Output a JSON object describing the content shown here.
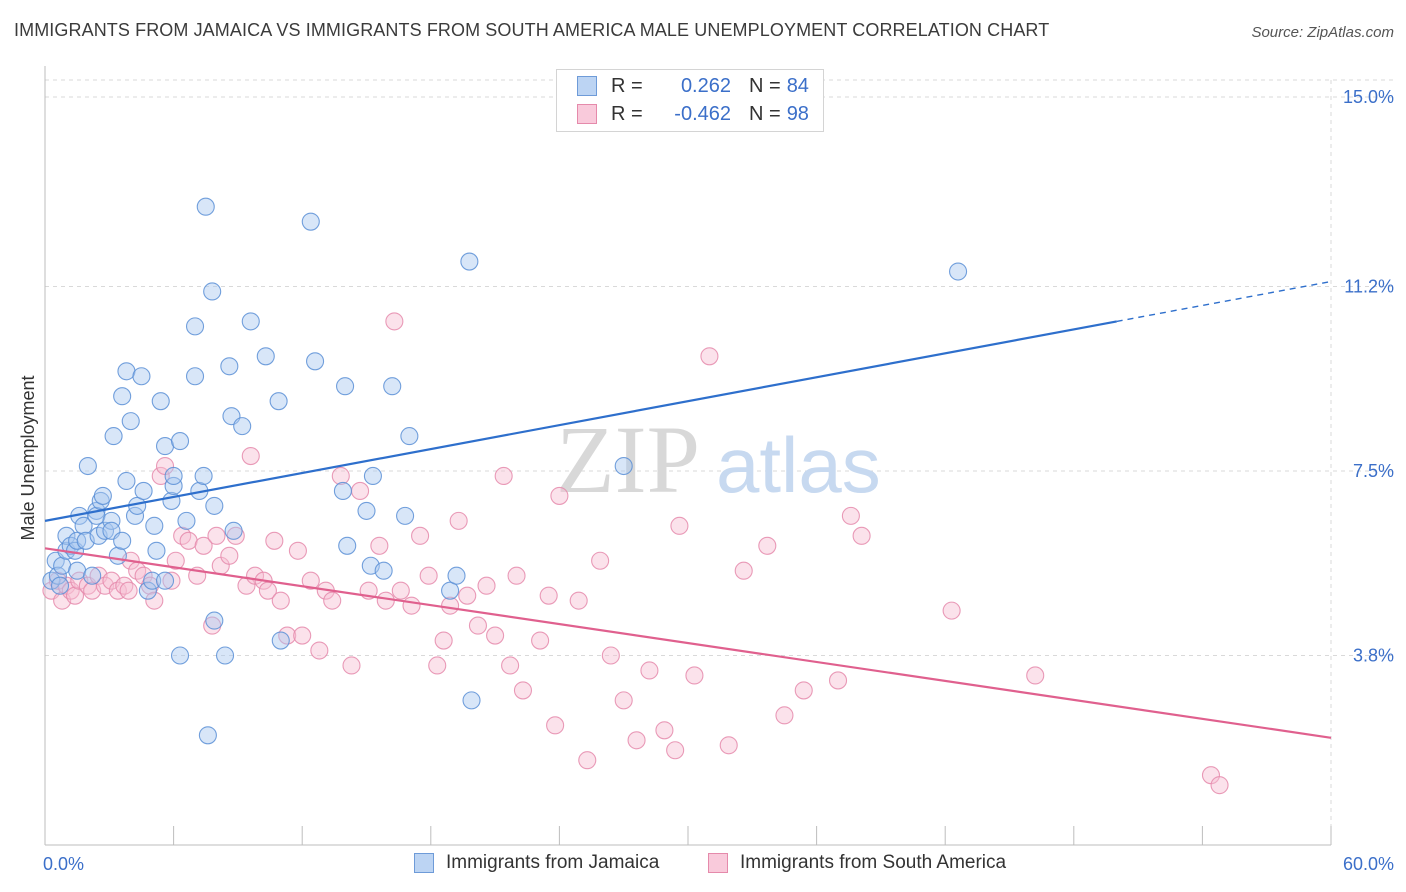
{
  "header": {
    "title": "IMMIGRANTS FROM JAMAICA VS IMMIGRANTS FROM SOUTH AMERICA MALE UNEMPLOYMENT CORRELATION CHART",
    "source": "Source: ZipAtlas.com"
  },
  "watermark": {
    "zip": "ZIP",
    "atlas": "atlas"
  },
  "colors": {
    "blue_fill": "#a9c8f0",
    "blue_stroke": "#5b8fd6",
    "blue_line": "#2e6fcc",
    "pink_fill": "#f6bfd2",
    "pink_stroke": "#e58aab",
    "pink_line": "#e0608e",
    "grid": "#d9d9d9",
    "axis_text": "#3b6fc9"
  },
  "legend_top": {
    "rows": [
      {
        "r_label": "R =",
        "r_value": "0.262",
        "n_label": "N =",
        "n_value": "84"
      },
      {
        "r_label": "R =",
        "r_value": "-0.462",
        "n_label": "N =",
        "n_value": "98"
      }
    ]
  },
  "legend_bottom": {
    "items": [
      "Immigrants from Jamaica",
      "Immigrants from South America"
    ]
  },
  "chart_data": {
    "type": "scatter",
    "title": "IMMIGRANTS FROM JAMAICA VS IMMIGRANTS FROM SOUTH AMERICA MALE UNEMPLOYMENT CORRELATION CHART",
    "xlabel": "",
    "ylabel": "Male Unemployment",
    "xlim": [
      0,
      60
    ],
    "ylim": [
      0,
      15.5
    ],
    "x_tick_labels": [
      "0.0%",
      "60.0%"
    ],
    "y_ticks": [
      3.8,
      7.5,
      11.2,
      15.0
    ],
    "y_tick_labels": [
      "3.8%",
      "7.5%",
      "11.2%",
      "15.0%"
    ],
    "grid": true,
    "legend_position": "top-center",
    "series": [
      {
        "name": "Immigrants from Jamaica",
        "R": 0.262,
        "N": 84,
        "trend": {
          "x": [
            0,
            50
          ],
          "y": [
            6.5,
            10.5
          ],
          "dashed_to_x": 60,
          "dashed_y_end": 11.3
        },
        "points": [
          [
            0.3,
            5.3
          ],
          [
            0.5,
            5.7
          ],
          [
            0.6,
            5.4
          ],
          [
            0.8,
            5.6
          ],
          [
            0.7,
            5.2
          ],
          [
            1.0,
            5.9
          ],
          [
            1.0,
            6.2
          ],
          [
            1.2,
            6.0
          ],
          [
            1.4,
            5.9
          ],
          [
            1.5,
            6.1
          ],
          [
            1.5,
            5.5
          ],
          [
            1.6,
            6.6
          ],
          [
            1.8,
            6.4
          ],
          [
            1.9,
            6.1
          ],
          [
            2.0,
            7.6
          ],
          [
            2.2,
            5.4
          ],
          [
            2.4,
            6.7
          ],
          [
            2.4,
            6.6
          ],
          [
            2.5,
            6.2
          ],
          [
            2.6,
            6.9
          ],
          [
            2.7,
            7.0
          ],
          [
            2.8,
            6.3
          ],
          [
            3.1,
            6.5
          ],
          [
            3.1,
            6.3
          ],
          [
            3.2,
            8.2
          ],
          [
            3.4,
            5.8
          ],
          [
            3.6,
            6.1
          ],
          [
            3.6,
            9.0
          ],
          [
            3.8,
            9.5
          ],
          [
            3.8,
            7.3
          ],
          [
            4.0,
            8.5
          ],
          [
            4.2,
            6.6
          ],
          [
            4.3,
            6.8
          ],
          [
            4.5,
            9.4
          ],
          [
            4.6,
            7.1
          ],
          [
            4.8,
            5.1
          ],
          [
            5.0,
            5.3
          ],
          [
            5.1,
            6.4
          ],
          [
            5.2,
            5.9
          ],
          [
            5.4,
            8.9
          ],
          [
            5.6,
            5.3
          ],
          [
            5.6,
            8.0
          ],
          [
            5.9,
            6.9
          ],
          [
            6.0,
            7.2
          ],
          [
            6.0,
            7.4
          ],
          [
            6.3,
            8.1
          ],
          [
            6.3,
            3.8
          ],
          [
            6.6,
            6.5
          ],
          [
            7.0,
            10.4
          ],
          [
            7.0,
            9.4
          ],
          [
            7.2,
            7.1
          ],
          [
            7.4,
            7.4
          ],
          [
            7.5,
            12.8
          ],
          [
            7.6,
            2.2
          ],
          [
            7.8,
            11.1
          ],
          [
            7.9,
            6.8
          ],
          [
            7.9,
            4.5
          ],
          [
            8.4,
            3.8
          ],
          [
            8.6,
            9.6
          ],
          [
            8.7,
            8.6
          ],
          [
            8.8,
            6.3
          ],
          [
            9.2,
            8.4
          ],
          [
            9.6,
            10.5
          ],
          [
            10.3,
            9.8
          ],
          [
            10.9,
            8.9
          ],
          [
            11.0,
            4.1
          ],
          [
            12.4,
            12.5
          ],
          [
            12.6,
            9.7
          ],
          [
            13.9,
            7.1
          ],
          [
            14.0,
            9.2
          ],
          [
            14.1,
            6.0
          ],
          [
            15.0,
            6.7
          ],
          [
            15.2,
            5.6
          ],
          [
            15.3,
            7.4
          ],
          [
            15.8,
            5.5
          ],
          [
            16.2,
            9.2
          ],
          [
            16.8,
            6.6
          ],
          [
            17.0,
            8.2
          ],
          [
            18.9,
            5.1
          ],
          [
            19.2,
            5.4
          ],
          [
            19.8,
            11.7
          ],
          [
            19.9,
            2.9
          ],
          [
            27.0,
            7.6
          ],
          [
            42.6,
            11.5
          ]
        ]
      },
      {
        "name": "Immigrants from South America",
        "R": -0.462,
        "N": 98,
        "trend": {
          "x": [
            0,
            60
          ],
          "y": [
            5.95,
            2.15
          ]
        },
        "points": [
          [
            0.3,
            5.1
          ],
          [
            0.6,
            5.3
          ],
          [
            0.8,
            4.9
          ],
          [
            1.0,
            5.2
          ],
          [
            1.2,
            5.1
          ],
          [
            1.4,
            5.0
          ],
          [
            1.6,
            5.3
          ],
          [
            2.0,
            5.2
          ],
          [
            2.2,
            5.1
          ],
          [
            2.5,
            5.4
          ],
          [
            2.8,
            5.2
          ],
          [
            3.1,
            5.3
          ],
          [
            3.4,
            5.1
          ],
          [
            3.7,
            5.2
          ],
          [
            3.9,
            5.1
          ],
          [
            4.0,
            5.7
          ],
          [
            4.3,
            5.5
          ],
          [
            4.6,
            5.4
          ],
          [
            4.9,
            5.2
          ],
          [
            5.1,
            4.9
          ],
          [
            5.4,
            7.4
          ],
          [
            5.6,
            7.6
          ],
          [
            5.9,
            5.3
          ],
          [
            6.1,
            5.7
          ],
          [
            6.4,
            6.2
          ],
          [
            6.7,
            6.1
          ],
          [
            7.1,
            5.4
          ],
          [
            7.4,
            6.0
          ],
          [
            7.8,
            4.4
          ],
          [
            8.0,
            6.2
          ],
          [
            8.2,
            5.6
          ],
          [
            8.6,
            5.8
          ],
          [
            8.9,
            6.2
          ],
          [
            9.4,
            5.2
          ],
          [
            9.6,
            7.8
          ],
          [
            9.8,
            5.4
          ],
          [
            10.2,
            5.3
          ],
          [
            10.4,
            5.1
          ],
          [
            10.7,
            6.1
          ],
          [
            11.0,
            4.9
          ],
          [
            11.3,
            4.2
          ],
          [
            11.8,
            5.9
          ],
          [
            12.0,
            4.2
          ],
          [
            12.4,
            5.3
          ],
          [
            12.8,
            3.9
          ],
          [
            13.1,
            5.1
          ],
          [
            13.4,
            4.9
          ],
          [
            13.8,
            7.4
          ],
          [
            14.3,
            3.6
          ],
          [
            14.7,
            7.1
          ],
          [
            15.1,
            5.1
          ],
          [
            15.6,
            6.0
          ],
          [
            15.9,
            4.9
          ],
          [
            16.3,
            10.5
          ],
          [
            16.6,
            5.1
          ],
          [
            17.1,
            4.8
          ],
          [
            17.5,
            6.2
          ],
          [
            17.9,
            5.4
          ],
          [
            18.3,
            3.6
          ],
          [
            18.6,
            4.1
          ],
          [
            18.9,
            4.8
          ],
          [
            19.3,
            6.5
          ],
          [
            19.7,
            5.0
          ],
          [
            20.2,
            4.4
          ],
          [
            20.6,
            5.2
          ],
          [
            21.0,
            4.2
          ],
          [
            21.4,
            7.4
          ],
          [
            21.7,
            3.6
          ],
          [
            22.0,
            5.4
          ],
          [
            22.3,
            3.1
          ],
          [
            23.1,
            4.1
          ],
          [
            23.5,
            5.0
          ],
          [
            23.8,
            2.4
          ],
          [
            24.0,
            7.0
          ],
          [
            24.9,
            4.9
          ],
          [
            25.3,
            1.7
          ],
          [
            25.9,
            5.7
          ],
          [
            26.4,
            3.8
          ],
          [
            27.0,
            2.9
          ],
          [
            27.6,
            2.1
          ],
          [
            28.2,
            3.5
          ],
          [
            28.9,
            2.3
          ],
          [
            29.4,
            1.9
          ],
          [
            30.3,
            3.4
          ],
          [
            31.0,
            9.8
          ],
          [
            31.9,
            2.0
          ],
          [
            32.6,
            5.5
          ],
          [
            33.7,
            6.0
          ],
          [
            34.5,
            2.6
          ],
          [
            35.4,
            3.1
          ],
          [
            37.0,
            3.3
          ],
          [
            38.1,
            6.2
          ],
          [
            42.3,
            4.7
          ],
          [
            46.2,
            3.4
          ],
          [
            54.4,
            1.4
          ],
          [
            54.8,
            1.2
          ],
          [
            37.6,
            6.6
          ],
          [
            29.6,
            6.4
          ]
        ]
      }
    ]
  },
  "axis": {
    "y_label": "Male Unemployment",
    "x_min_label": "0.0%",
    "x_max_label": "60.0%"
  }
}
